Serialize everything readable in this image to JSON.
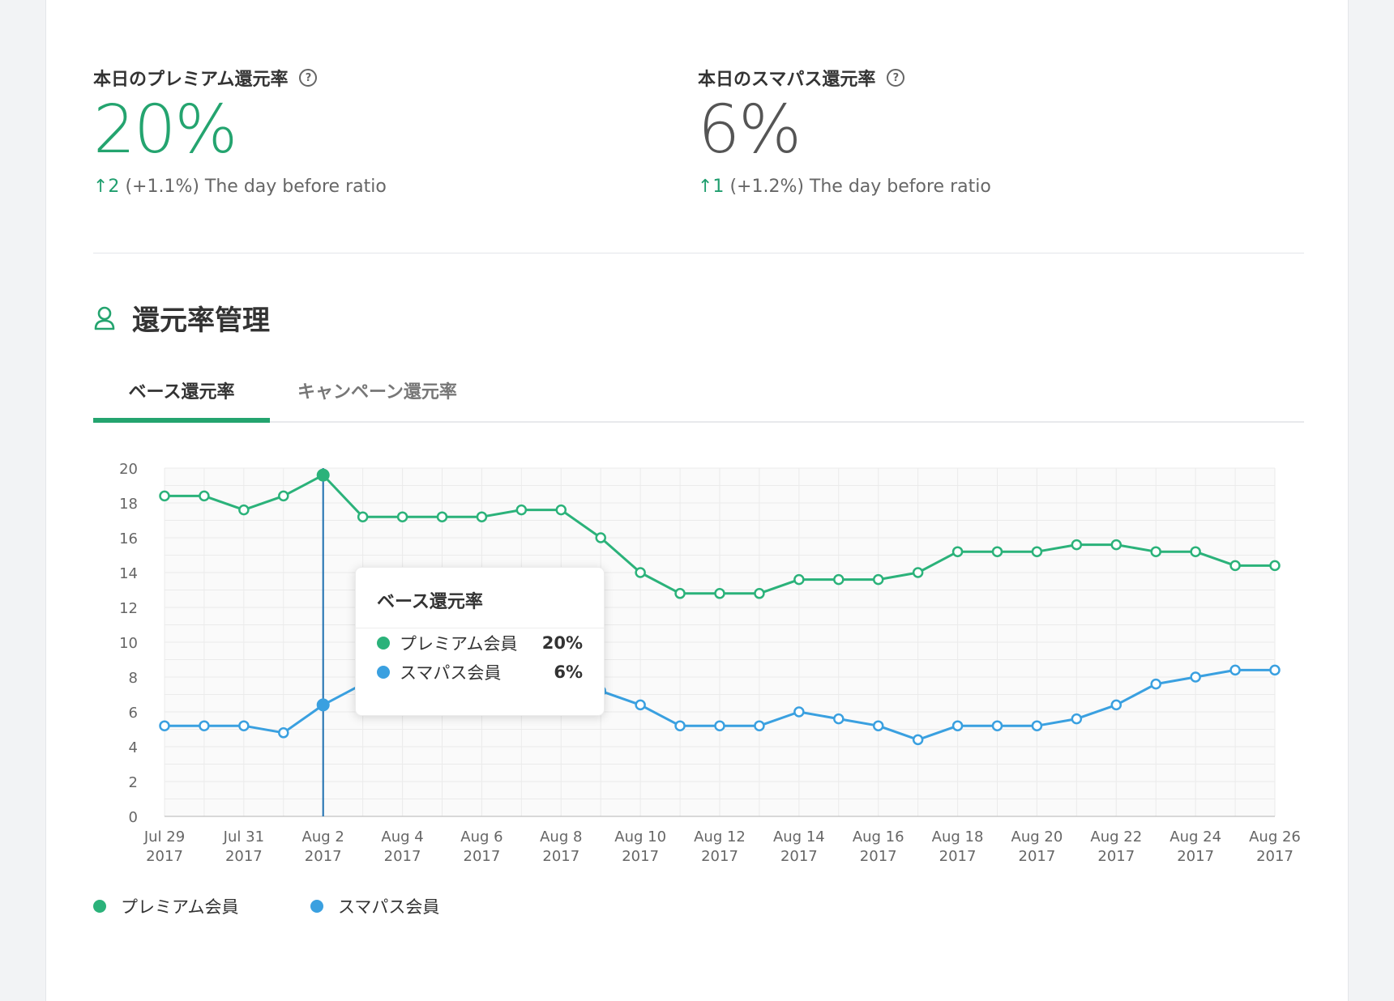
{
  "kpis": [
    {
      "title": "本日のプレミアム還元率",
      "value": "20%",
      "delta": "↑2",
      "change_text": "(+1.1%) The day before ratio",
      "color": "#24a46f"
    },
    {
      "title": "本日のスマパス還元率",
      "value": "6%",
      "delta": "↑1",
      "change_text": "(+1.2%) The day before ratio",
      "color": "#555555"
    }
  ],
  "help_glyph": "?",
  "section": {
    "title": "還元率管理",
    "icon": "user-icon"
  },
  "tabs": [
    {
      "label": "ベース還元率",
      "active": true
    },
    {
      "label": "キャンペーン還元率",
      "active": false
    }
  ],
  "tooltip": {
    "title": "ベース還元率",
    "rows": [
      {
        "label": "プレミアム会員",
        "value": "20%",
        "color": "#2bb27a"
      },
      {
        "label": "スマパス会員",
        "value": "6%",
        "color": "#3aa0e0"
      }
    ]
  },
  "legend": [
    {
      "label": "プレミアム会員",
      "color": "#2bb27a"
    },
    {
      "label": "スマパス会員",
      "color": "#3aa0e0"
    }
  ],
  "chart_data": {
    "type": "line",
    "title": "",
    "xlabel": "",
    "ylabel": "",
    "ylim": [
      0,
      20
    ],
    "yticks": [
      0,
      2,
      4,
      6,
      8,
      10,
      12,
      14,
      16,
      18,
      20
    ],
    "grid": true,
    "legend_position": "bottom-left",
    "x": [
      "2017-07-29",
      "2017-07-30",
      "2017-07-31",
      "2017-08-01",
      "2017-08-02",
      "2017-08-03",
      "2017-08-04",
      "2017-08-05",
      "2017-08-06",
      "2017-08-07",
      "2017-08-08",
      "2017-08-09",
      "2017-08-10",
      "2017-08-11",
      "2017-08-12",
      "2017-08-13",
      "2017-08-14",
      "2017-08-15",
      "2017-08-16",
      "2017-08-17",
      "2017-08-18",
      "2017-08-19",
      "2017-08-20",
      "2017-08-21",
      "2017-08-22",
      "2017-08-23",
      "2017-08-24",
      "2017-08-25",
      "2017-08-26"
    ],
    "tick_labels": [
      {
        "line1": "Jul 29",
        "line2": "2017"
      },
      {
        "line1": "Jul 31",
        "line2": "2017"
      },
      {
        "line1": "Aug 2",
        "line2": "2017"
      },
      {
        "line1": "Aug 4",
        "line2": "2017"
      },
      {
        "line1": "Aug 6",
        "line2": "2017"
      },
      {
        "line1": "Aug 8",
        "line2": "2017"
      },
      {
        "line1": "Aug 10",
        "line2": "2017"
      },
      {
        "line1": "Aug 12",
        "line2": "2017"
      },
      {
        "line1": "Aug 14",
        "line2": "2017"
      },
      {
        "line1": "Aug 16",
        "line2": "2017"
      },
      {
        "line1": "Aug 18",
        "line2": "2017"
      },
      {
        "line1": "Aug 20",
        "line2": "2017"
      },
      {
        "line1": "Aug 22",
        "line2": "2017"
      },
      {
        "line1": "Aug 24",
        "line2": "2017"
      },
      {
        "line1": "Aug 26",
        "line2": "2017"
      }
    ],
    "highlight_x": "2017-08-02",
    "series": [
      {
        "name": "プレミアム会員",
        "color": "#2bb27a",
        "values": [
          18.4,
          18.4,
          17.6,
          18.4,
          19.6,
          17.2,
          17.2,
          17.2,
          17.2,
          17.6,
          17.6,
          16.0,
          14.0,
          12.8,
          12.8,
          12.8,
          13.6,
          13.6,
          13.6,
          14.0,
          15.2,
          15.2,
          15.2,
          15.6,
          15.6,
          15.2,
          15.2,
          14.4,
          14.4
        ]
      },
      {
        "name": "スマパス会員",
        "color": "#3aa0e0",
        "values": [
          5.2,
          5.2,
          5.2,
          4.8,
          6.4,
          7.6,
          7.8,
          7.8,
          7.6,
          7.6,
          7.6,
          7.2,
          6.4,
          5.2,
          5.2,
          5.2,
          6.0,
          5.6,
          5.2,
          4.4,
          5.2,
          5.2,
          5.2,
          5.6,
          6.4,
          7.6,
          8.0,
          8.4,
          8.4
        ]
      }
    ]
  }
}
